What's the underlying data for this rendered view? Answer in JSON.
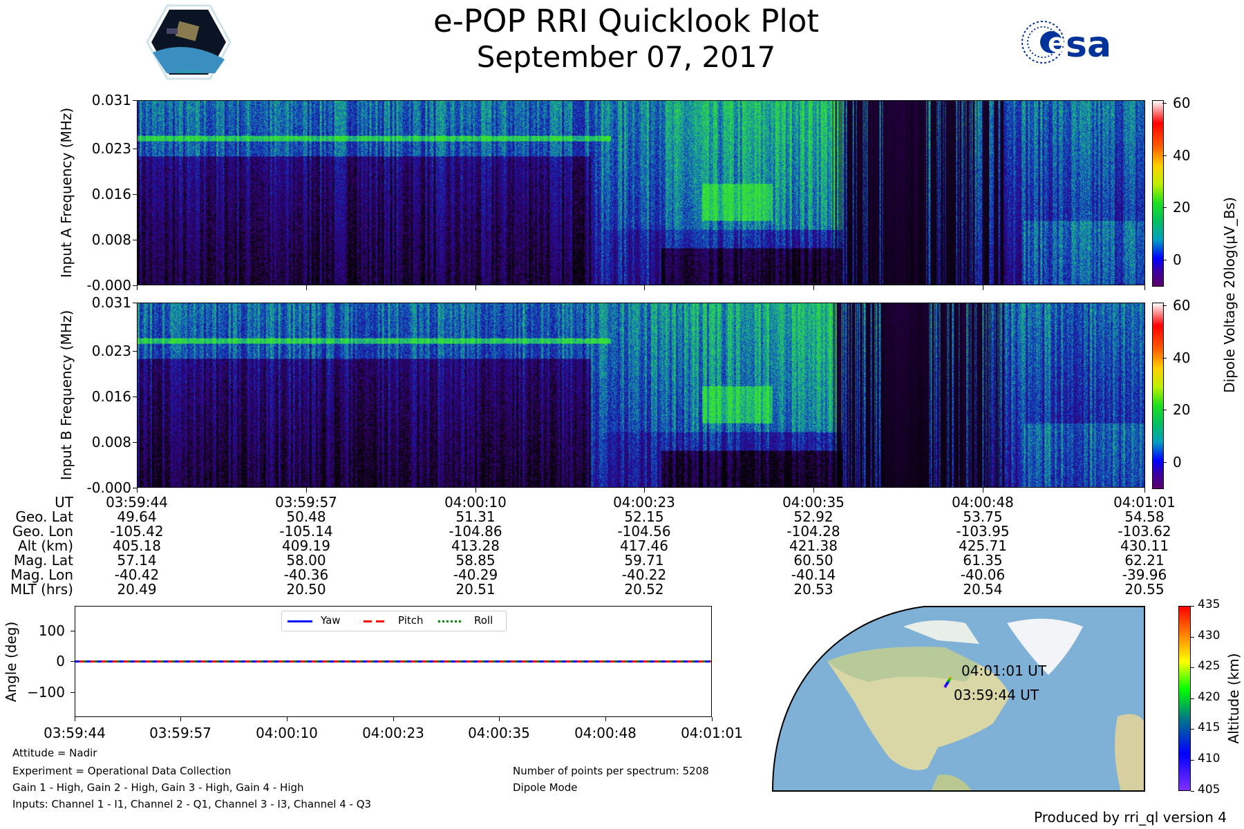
{
  "header": {
    "title": "e-POP RRI Quicklook Plot",
    "date": "September 07, 2017",
    "logo_left": "CASSIOPE",
    "logo_right": "esa"
  },
  "colors": {
    "spectro_low": "#000000",
    "spectro_mid": "#1a1aa0",
    "spectro_high": "#2fd34a",
    "ocean": "#7fb0d6",
    "land": "#d9d7a6"
  },
  "chart_data": [
    {
      "type": "heatmap",
      "title": "Input A",
      "ylabel": "Input A Frequency (MHz)",
      "yticks": [
        "-0.000",
        "0.008",
        "0.016",
        "0.023",
        "0.031"
      ],
      "ylim": [
        0,
        0.031
      ],
      "colorbar": {
        "label": "Dipole Voltage 20log(μV_Bs)",
        "ticks": [
          "60",
          "40",
          "20",
          "0"
        ],
        "range": [
          -10,
          62
        ]
      }
    },
    {
      "type": "heatmap",
      "title": "Input B",
      "ylabel": "Input B Frequency (MHz)",
      "yticks": [
        "-0.000",
        "0.008",
        "0.016",
        "0.023",
        "0.031"
      ],
      "ylim": [
        0,
        0.031
      ],
      "colorbar": {
        "ticks": [
          "60",
          "40",
          "20",
          "0"
        ],
        "range": [
          -10,
          62
        ]
      }
    },
    {
      "type": "line",
      "ylabel": "Angle (deg)",
      "yticks": [
        "100",
        "0",
        "−100"
      ],
      "ylim": [
        -180,
        180
      ],
      "xticks": [
        "03:59:44",
        "03:59:57",
        "04:00:10",
        "04:00:23",
        "04:00:35",
        "04:00:48",
        "04:01:01"
      ],
      "series": [
        {
          "name": "Yaw",
          "color": "#0000ff",
          "values": [
            0,
            0
          ]
        },
        {
          "name": "Pitch",
          "color": "#ff0000",
          "values": [
            0,
            0
          ]
        },
        {
          "name": "Roll",
          "color": "#008000",
          "values": [
            0,
            0
          ]
        }
      ]
    }
  ],
  "ephemeris": {
    "labels": [
      "UT",
      "Geo. Lat",
      "Geo. Lon",
      "Alt (km)",
      "Mag. Lat",
      "Mag. Lon",
      "MLT (hrs)"
    ],
    "columns": [
      [
        "03:59:44",
        "49.64",
        "-105.42",
        "405.18",
        "57.14",
        "-40.42",
        "20.49"
      ],
      [
        "03:59:57",
        "50.48",
        "-105.14",
        "409.19",
        "58.00",
        "-40.36",
        "20.50"
      ],
      [
        "04:00:10",
        "51.31",
        "-104.86",
        "413.28",
        "58.85",
        "-40.29",
        "20.51"
      ],
      [
        "04:00:23",
        "52.15",
        "-104.56",
        "417.46",
        "59.71",
        "-40.22",
        "20.52"
      ],
      [
        "04:00:35",
        "52.92",
        "-104.28",
        "421.38",
        "60.50",
        "-40.14",
        "20.53"
      ],
      [
        "04:00:48",
        "53.75",
        "-103.95",
        "425.71",
        "61.35",
        "-40.06",
        "20.54"
      ],
      [
        "04:01:01",
        "54.58",
        "-103.62",
        "430.11",
        "62.21",
        "-39.96",
        "20.55"
      ]
    ]
  },
  "info": {
    "attitude": "Attitude = Nadir",
    "experiment": "Experiment = Operational Data Collection",
    "gains": "Gain 1 - High, Gain 2 - High, Gain 3 - High, Gain 4 - High",
    "inputs": "Inputs: Channel 1 - I1, Channel 2 - Q1, Channel 3 - I3, Channel 4 - Q3",
    "points": "Number of points per spectrum: 5208",
    "mode": "Dipole Mode"
  },
  "map": {
    "end_label": "04:01:01 UT",
    "start_label": "03:59:44 UT",
    "colorbar_label": "Altitude (km)",
    "colorbar_ticks": [
      "435",
      "430",
      "425",
      "420",
      "415",
      "410",
      "405"
    ]
  },
  "footer": "Produced by rri_ql version 4"
}
